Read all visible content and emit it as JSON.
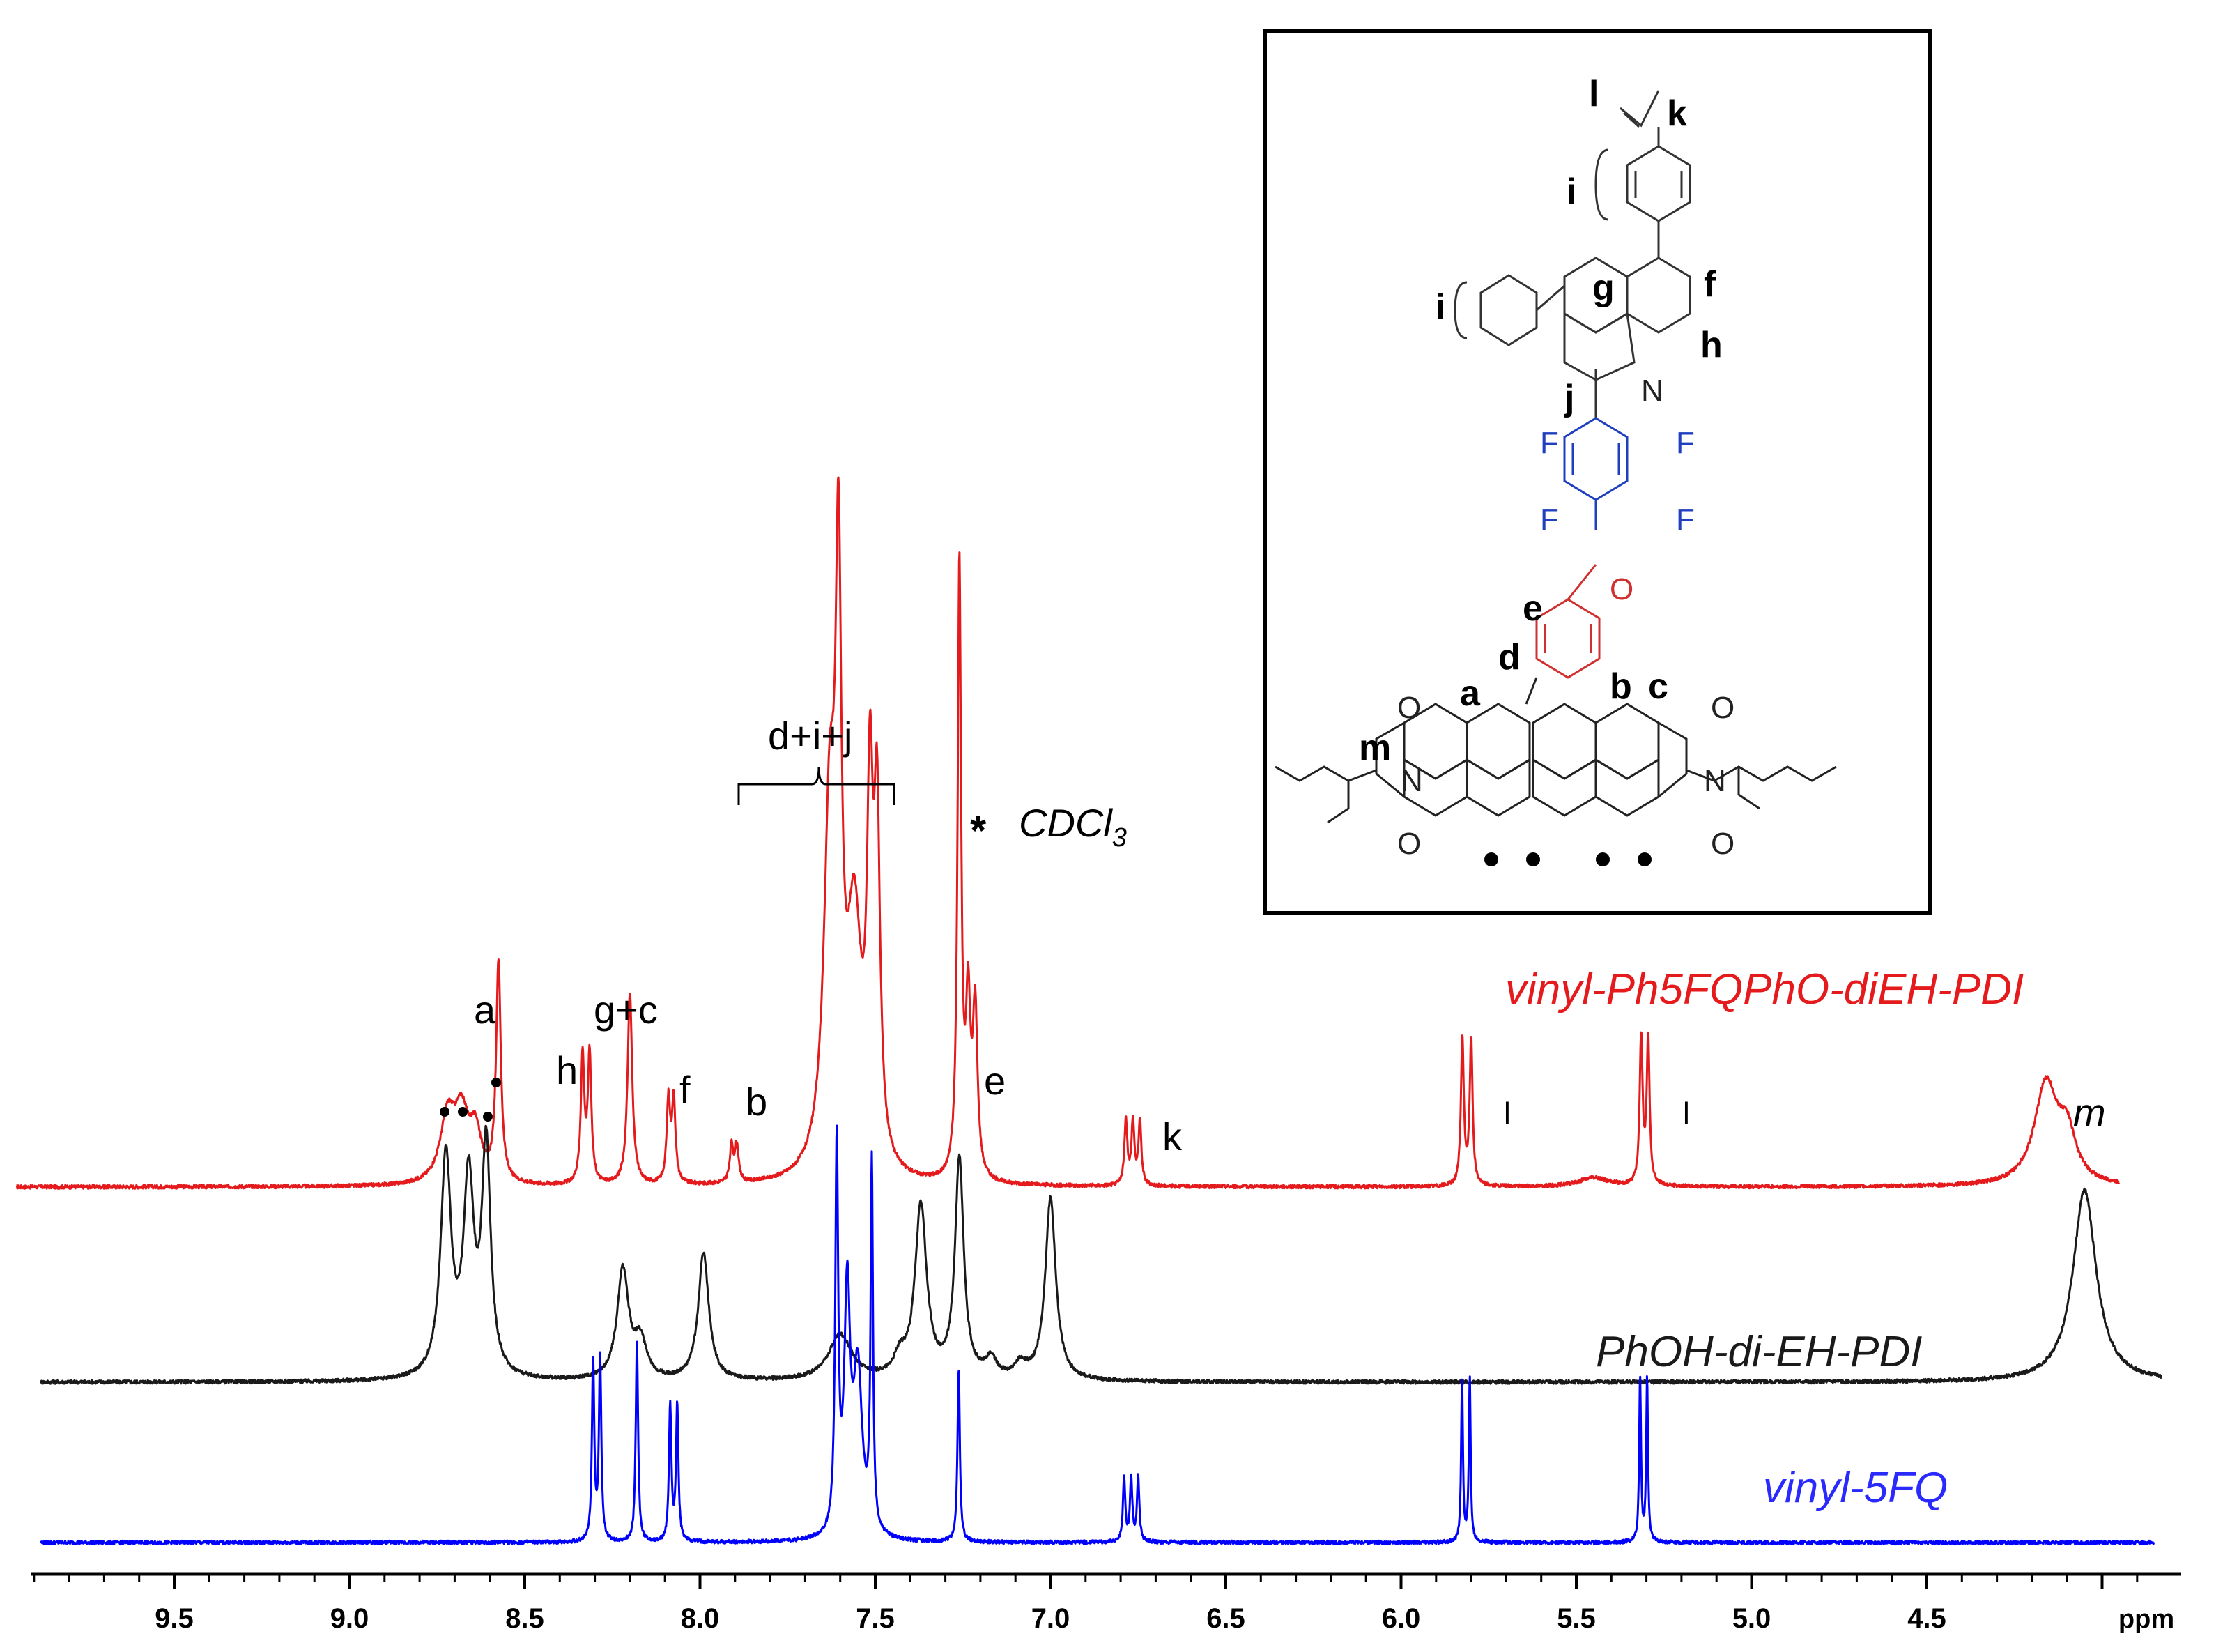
{
  "chart_data": {
    "type": "line",
    "title": "",
    "xlabel": "ppm",
    "xlim": [
      9.95,
      3.82
    ],
    "x_reversed": true,
    "x_ticks": [
      "9.5",
      "9.0",
      "8.5",
      "8.0",
      "7.5",
      "7.0",
      "6.5",
      "6.0",
      "5.5",
      "5.0",
      "4.5"
    ],
    "series": [
      {
        "name": "vinyl-Ph5FQPhO-diEH-PDI",
        "color": "#e41a1c",
        "baseline_ppm_range": [
          9.95,
          3.95
        ],
        "peaks": [
          {
            "ppm": 8.72,
            "height": 0.07,
            "width": 0.025
          },
          {
            "ppm": 8.68,
            "height": 0.07,
            "width": 0.025
          },
          {
            "ppm": 8.64,
            "height": 0.05,
            "width": 0.02
          },
          {
            "ppm": 8.575,
            "height": 0.24,
            "width": 0.008
          },
          {
            "ppm": 8.335,
            "height": 0.14,
            "width": 0.006
          },
          {
            "ppm": 8.315,
            "height": 0.14,
            "width": 0.006
          },
          {
            "ppm": 8.2,
            "height": 0.21,
            "width": 0.008
          },
          {
            "ppm": 8.09,
            "height": 0.09,
            "width": 0.006
          },
          {
            "ppm": 8.075,
            "height": 0.09,
            "width": 0.006
          },
          {
            "ppm": 7.91,
            "height": 0.04,
            "width": 0.006
          },
          {
            "ppm": 7.895,
            "height": 0.04,
            "width": 0.006
          },
          {
            "ppm": 7.63,
            "height": 0.38,
            "width": 0.02
          },
          {
            "ppm": 7.605,
            "height": 0.56,
            "width": 0.01
          },
          {
            "ppm": 7.56,
            "height": 0.26,
            "width": 0.025
          },
          {
            "ppm": 7.515,
            "height": 0.37,
            "width": 0.01
          },
          {
            "ppm": 7.495,
            "height": 0.36,
            "width": 0.01
          },
          {
            "ppm": 7.26,
            "height": 0.67,
            "width": 0.006
          },
          {
            "ppm": 7.235,
            "height": 0.18,
            "width": 0.008
          },
          {
            "ppm": 7.215,
            "height": 0.18,
            "width": 0.008
          },
          {
            "ppm": 6.785,
            "height": 0.07,
            "width": 0.005
          },
          {
            "ppm": 6.765,
            "height": 0.07,
            "width": 0.005
          },
          {
            "ppm": 6.745,
            "height": 0.07,
            "width": 0.005
          },
          {
            "ppm": 5.825,
            "height": 0.16,
            "width": 0.005
          },
          {
            "ppm": 5.8,
            "height": 0.16,
            "width": 0.005
          },
          {
            "ppm": 5.315,
            "height": 0.16,
            "width": 0.005
          },
          {
            "ppm": 5.295,
            "height": 0.16,
            "width": 0.005
          },
          {
            "ppm": 5.45,
            "height": 0.01,
            "width": 0.05
          },
          {
            "ppm": 4.16,
            "height": 0.11,
            "width": 0.04
          },
          {
            "ppm": 4.1,
            "height": 0.05,
            "width": 0.03
          }
        ]
      },
      {
        "name": "PhOH-di-EH-PDI",
        "color": "#1a1a1a",
        "baseline_ppm_range": [
          9.88,
          3.83
        ],
        "peaks": [
          {
            "ppm": 8.725,
            "height": 0.24,
            "width": 0.018
          },
          {
            "ppm": 8.66,
            "height": 0.21,
            "width": 0.018
          },
          {
            "ppm": 8.61,
            "height": 0.25,
            "width": 0.015
          },
          {
            "ppm": 8.22,
            "height": 0.12,
            "width": 0.02
          },
          {
            "ppm": 8.17,
            "height": 0.04,
            "width": 0.02
          },
          {
            "ppm": 7.99,
            "height": 0.14,
            "width": 0.018
          },
          {
            "ppm": 7.6,
            "height": 0.05,
            "width": 0.04
          },
          {
            "ppm": 7.43,
            "height": 0.02,
            "width": 0.02
          },
          {
            "ppm": 7.37,
            "height": 0.19,
            "width": 0.02
          },
          {
            "ppm": 7.26,
            "height": 0.24,
            "width": 0.015
          },
          {
            "ppm": 7.17,
            "height": 0.02,
            "width": 0.02
          },
          {
            "ppm": 7.085,
            "height": 0.015,
            "width": 0.02
          },
          {
            "ppm": 7.0,
            "height": 0.2,
            "width": 0.018
          },
          {
            "ppm": 4.05,
            "height": 0.21,
            "width": 0.04
          }
        ]
      },
      {
        "name": "vinyl-5FQ",
        "color": "#0000ff",
        "baseline_ppm_range": [
          9.88,
          3.85
        ],
        "peaks": [
          {
            "ppm": 8.305,
            "height": 0.2,
            "width": 0.004
          },
          {
            "ppm": 8.285,
            "height": 0.2,
            "width": 0.004
          },
          {
            "ppm": 8.18,
            "height": 0.22,
            "width": 0.004
          },
          {
            "ppm": 8.085,
            "height": 0.15,
            "width": 0.004
          },
          {
            "ppm": 8.065,
            "height": 0.15,
            "width": 0.004
          },
          {
            "ppm": 7.61,
            "height": 0.42,
            "width": 0.005
          },
          {
            "ppm": 7.58,
            "height": 0.26,
            "width": 0.01
          },
          {
            "ppm": 7.55,
            "height": 0.18,
            "width": 0.015
          },
          {
            "ppm": 7.51,
            "height": 0.4,
            "width": 0.004
          },
          {
            "ppm": 7.262,
            "height": 0.19,
            "width": 0.004
          },
          {
            "ppm": 6.79,
            "height": 0.07,
            "width": 0.004
          },
          {
            "ppm": 6.77,
            "height": 0.07,
            "width": 0.004
          },
          {
            "ppm": 6.75,
            "height": 0.07,
            "width": 0.004
          },
          {
            "ppm": 5.826,
            "height": 0.18,
            "width": 0.003
          },
          {
            "ppm": 5.804,
            "height": 0.18,
            "width": 0.003
          },
          {
            "ppm": 5.318,
            "height": 0.18,
            "width": 0.003
          },
          {
            "ppm": 5.298,
            "height": 0.18,
            "width": 0.003
          }
        ]
      }
    ],
    "annotations": [
      {
        "text": "a",
        "ppm": 8.57
      },
      {
        "text": "h",
        "ppm": 8.4
      },
      {
        "text": "g+c",
        "ppm": 8.19
      },
      {
        "text": "f",
        "ppm": 8.05
      },
      {
        "text": "b",
        "ppm": 7.88
      },
      {
        "text": "d+i+j",
        "ppm": 7.58
      },
      {
        "text": "e",
        "ppm": 7.18
      },
      {
        "text": "k",
        "ppm": 6.7
      },
      {
        "text": "l",
        "ppm": 5.7
      },
      {
        "text": "l",
        "ppm": 5.2
      },
      {
        "text": "m",
        "ppm": 4.08
      },
      {
        "text": "* CDCl3",
        "ppm": 7.1
      }
    ]
  },
  "labels": {
    "xlabel": "ppm",
    "series1": "vinyl-Ph5FQPhO-diEH-PDI",
    "series2": "PhOH-di-EH-PDI",
    "series3": "vinyl-5FQ",
    "ann_a": "a",
    "ann_h": "h",
    "ann_gc": "g+c",
    "ann_f": "f",
    "ann_b": "b",
    "ann_dij": "d+i+j",
    "ann_e": "e",
    "ann_k": "k",
    "ann_l1": "l",
    "ann_l2": "l",
    "ann_m": "m",
    "ann_star": "*",
    "ann_cdcl": "CDCl",
    "ann_cdcl_sub": "3"
  },
  "structure": {
    "labels": {
      "l": "l",
      "k": "k",
      "i_top": "i",
      "i_left": "i",
      "g": "g",
      "f": "f",
      "h": "h",
      "j": "j",
      "N_ring": "N",
      "F1": "F",
      "F2": "F",
      "F3": "F",
      "F4": "F",
      "O_ether": "O",
      "e": "e",
      "d": "d",
      "a": "a",
      "b": "b",
      "c": "c",
      "m": "m",
      "O1": "O",
      "O2": "O",
      "O3": "O",
      "O4": "O",
      "N_left": "N",
      "N_right": "N"
    },
    "colors": {
      "fluoro_ring": "#1f3fbf",
      "phenoxy_ring": "#d03030",
      "bonds": "#333333"
    }
  }
}
